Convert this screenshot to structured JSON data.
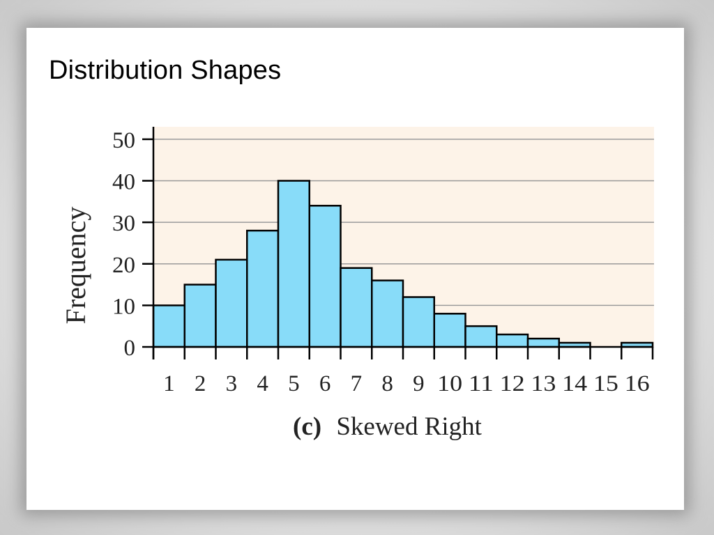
{
  "slide": {
    "title": "Distribution Shapes"
  },
  "chart_data": {
    "type": "bar",
    "categories": [
      "1",
      "2",
      "3",
      "4",
      "5",
      "6",
      "7",
      "8",
      "9",
      "10",
      "11",
      "12",
      "13",
      "14",
      "15",
      "16"
    ],
    "values": [
      10,
      15,
      21,
      28,
      40,
      34,
      19,
      16,
      12,
      8,
      5,
      3,
      2,
      1,
      0,
      1
    ],
    "yticks": [
      "0",
      "10",
      "20",
      "30",
      "40",
      "50"
    ],
    "ylim": [
      0,
      53
    ],
    "ylabel": "Frequency",
    "xlabel_prefix": "(c)",
    "xlabel": "Skewed Right",
    "grid": true,
    "colors": {
      "bar_fill": "#88dcf9",
      "bar_stroke": "#000000",
      "plot_background": "#fdf3e8",
      "grid": "#9a9a9a"
    }
  }
}
